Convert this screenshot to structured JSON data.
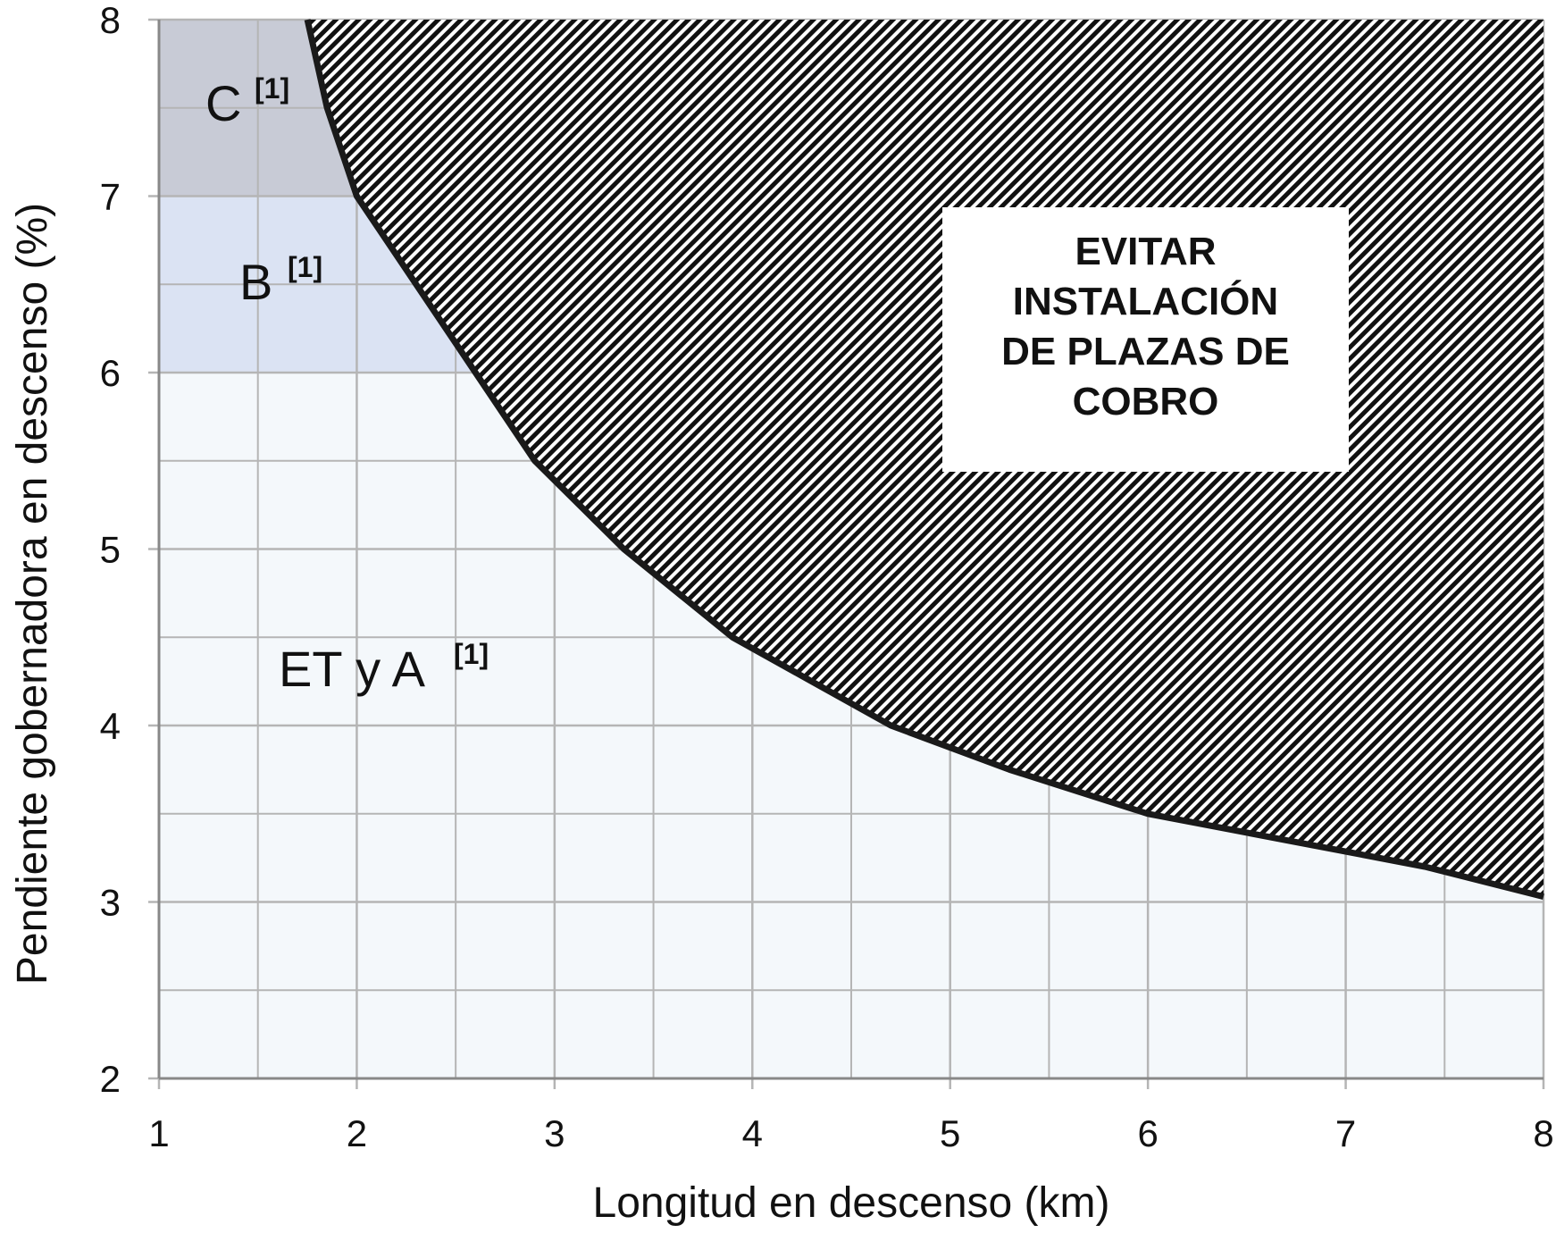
{
  "chart_data": {
    "type": "area",
    "xlabel": "Longitud en descenso (km)",
    "ylabel": "Pendiente gobernadora en descenso (%)",
    "xlim": [
      1,
      8
    ],
    "ylim": [
      2,
      8
    ],
    "x_ticks": [
      "1",
      "2",
      "3",
      "4",
      "5",
      "6",
      "7",
      "8"
    ],
    "y_ticks": [
      "2",
      "3",
      "4",
      "5",
      "6",
      "7",
      "8"
    ],
    "minor_grid_step": 0.5,
    "grid": true,
    "series": [
      {
        "x": [
          1.75,
          1.85,
          2.0,
          2.3,
          2.6,
          2.9,
          3.35,
          3.9,
          4.7,
          5.3,
          6.0,
          6.7,
          7.4,
          8.0
        ],
        "y": [
          8.0,
          7.5,
          7.0,
          6.5,
          6.0,
          5.5,
          5.0,
          4.5,
          4.0,
          3.75,
          3.5,
          3.35,
          3.2,
          3.03
        ]
      }
    ],
    "regions": [
      {
        "label": "C",
        "superscript": "[1]",
        "y_from": 7,
        "y_to": 8,
        "color": "#c8cbd6"
      },
      {
        "label": "B",
        "superscript": "[1]",
        "y_from": 6,
        "y_to": 7,
        "color": "#dbe3f3"
      },
      {
        "label": "ET y A",
        "superscript": "[1]",
        "y_from": 2,
        "y_to": 6,
        "color": "#f4f8fb"
      }
    ],
    "avoid_region": {
      "lines": [
        "EVITAR",
        "INSTALACIÓN",
        "DE PLAZAS DE",
        "COBRO"
      ],
      "hatch_colors": [
        "#111111",
        "#ffffff"
      ]
    },
    "colors": {
      "curve": "#1a1a1a",
      "grid": "#b5b5b5",
      "axis": "#888888"
    }
  }
}
